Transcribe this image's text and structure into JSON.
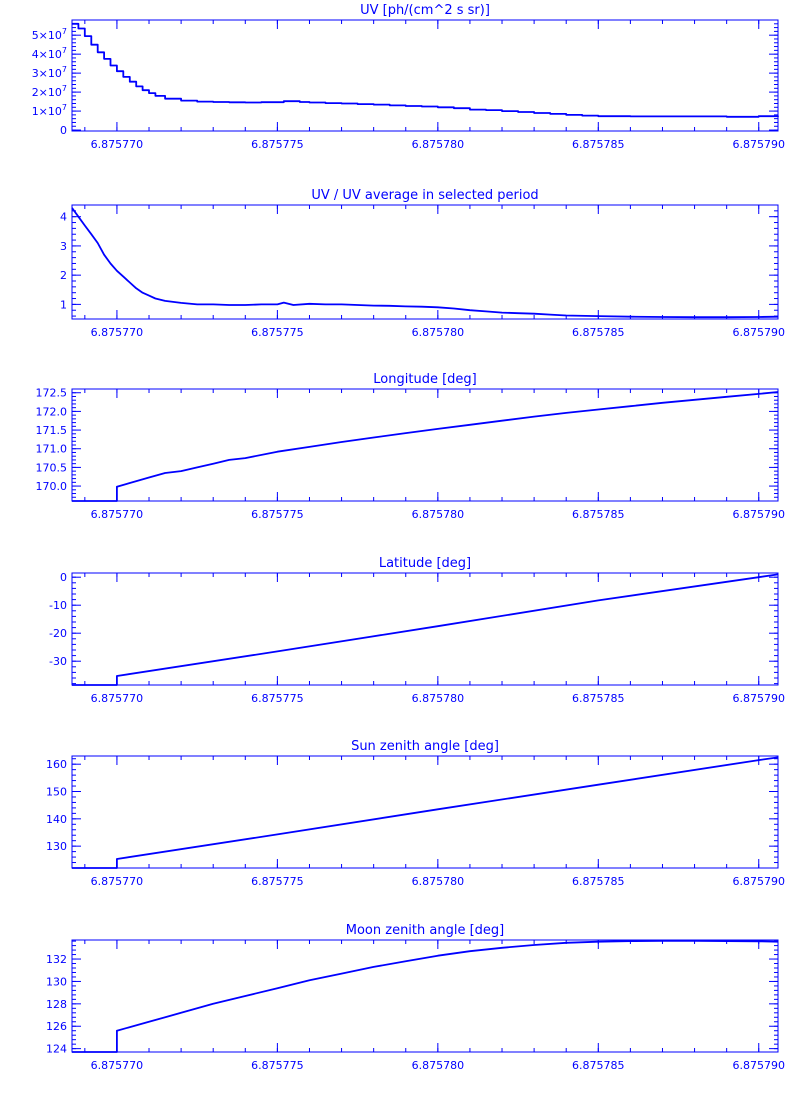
{
  "style": {
    "color": "#0000ff",
    "background": "#ffffff"
  },
  "chart_data": [
    {
      "type": "line",
      "title": "UV [ph/(cm^2 s sr)]",
      "xlabel": "",
      "ylabel": "",
      "xlim": [
        6.8757686,
        6.8757906
      ],
      "ylim": [
        -500000,
        58000000
      ],
      "xticks": [
        6.87577,
        6.875775,
        6.87578,
        6.875785,
        6.87579
      ],
      "xtick_labels": [
        "6.875770",
        "6.875775",
        "6.875780",
        "6.875785",
        "6.875790"
      ],
      "yticks": [
        {
          "value": 0,
          "base": "0",
          "exp": ""
        },
        {
          "value": 10000000,
          "base": "1×10",
          "exp": "7"
        },
        {
          "value": 20000000,
          "base": "2×10",
          "exp": "7"
        },
        {
          "value": 30000000,
          "base": "3×10",
          "exp": "7"
        },
        {
          "value": 40000000,
          "base": "4×10",
          "exp": "7"
        },
        {
          "value": 50000000,
          "base": "5×10",
          "exp": "7"
        }
      ],
      "step": true,
      "series": [
        {
          "x": [
            6.8757686,
            6.8757688,
            6.875769,
            6.8757692,
            6.8757694,
            6.8757696,
            6.8757698,
            6.87577,
            6.8757702,
            6.8757704,
            6.8757706,
            6.8757708,
            6.875771,
            6.8757712,
            6.8757715,
            6.875772,
            6.8757725,
            6.875773,
            6.8757735,
            6.875774,
            6.8757745,
            6.8757752,
            6.8757757,
            6.875776,
            6.8757765,
            6.875777,
            6.8757775,
            6.875778,
            6.8757785,
            6.875779,
            6.8757795,
            6.87578,
            6.8757805,
            6.875781,
            6.8757815,
            6.875782,
            6.8757825,
            6.875783,
            6.8757835,
            6.875784,
            6.8757845,
            6.875785,
            6.875786,
            6.875787,
            6.875788,
            6.875789,
            6.87579,
            6.8757906
          ],
          "y": [
            56000000,
            53500000,
            49500000,
            45000000,
            41000000,
            37500000,
            34000000,
            31000000,
            28000000,
            25500000,
            23000000,
            21000000,
            19500000,
            18000000,
            16500000,
            15500000,
            15000000,
            14800000,
            14600000,
            14500000,
            14700000,
            15200000,
            14800000,
            14500000,
            14200000,
            14000000,
            13700000,
            13400000,
            13000000,
            12700000,
            12400000,
            12000000,
            11500000,
            10800000,
            10500000,
            10000000,
            9500000,
            9000000,
            8500000,
            8000000,
            7600000,
            7300000,
            7200000,
            7200000,
            7200000,
            7000000,
            7300000,
            7500000
          ]
        }
      ]
    },
    {
      "type": "line",
      "title": "UV / UV average in selected period",
      "xlabel": "",
      "ylabel": "",
      "xlim": [
        6.8757686,
        6.8757906
      ],
      "ylim": [
        0.5,
        4.4
      ],
      "xticks": [
        6.87577,
        6.875775,
        6.87578,
        6.875785,
        6.87579
      ],
      "xtick_labels": [
        "6.875770",
        "6.875775",
        "6.875780",
        "6.875785",
        "6.875790"
      ],
      "yticks": [
        {
          "value": 1,
          "base": "1",
          "exp": ""
        },
        {
          "value": 2,
          "base": "2",
          "exp": ""
        },
        {
          "value": 3,
          "base": "3",
          "exp": ""
        },
        {
          "value": 4,
          "base": "4",
          "exp": ""
        }
      ],
      "step": false,
      "series": [
        {
          "x": [
            6.8757686,
            6.8757688,
            6.875769,
            6.8757692,
            6.8757694,
            6.8757696,
            6.8757698,
            6.87577,
            6.8757702,
            6.8757704,
            6.8757706,
            6.8757708,
            6.875771,
            6.8757712,
            6.8757715,
            6.875772,
            6.8757725,
            6.875773,
            6.8757735,
            6.875774,
            6.8757745,
            6.875775,
            6.8757752,
            6.8757755,
            6.875776,
            6.8757765,
            6.875777,
            6.8757775,
            6.875778,
            6.8757785,
            6.875779,
            6.8757795,
            6.87578,
            6.8757805,
            6.875781,
            6.8757815,
            6.875782,
            6.8757825,
            6.875783,
            6.8757835,
            6.875784,
            6.875785,
            6.875786,
            6.875787,
            6.875788,
            6.875789,
            6.87579,
            6.8757906
          ],
          "y": [
            4.3,
            4.0,
            3.7,
            3.4,
            3.1,
            2.7,
            2.4,
            2.15,
            1.95,
            1.75,
            1.55,
            1.4,
            1.3,
            1.2,
            1.12,
            1.05,
            1.0,
            1.0,
            0.98,
            0.98,
            1.0,
            1.0,
            1.06,
            0.98,
            1.02,
            1.0,
            1.0,
            0.98,
            0.96,
            0.95,
            0.93,
            0.92,
            0.9,
            0.86,
            0.8,
            0.76,
            0.72,
            0.7,
            0.68,
            0.65,
            0.62,
            0.6,
            0.58,
            0.57,
            0.56,
            0.56,
            0.57,
            0.58
          ]
        }
      ]
    },
    {
      "type": "line",
      "title": "Longitude [deg]",
      "xlabel": "",
      "ylabel": "",
      "xlim": [
        6.8757686,
        6.8757906
      ],
      "ylim": [
        169.6,
        172.6
      ],
      "xticks": [
        6.87577,
        6.875775,
        6.87578,
        6.875785,
        6.87579
      ],
      "xtick_labels": [
        "6.875770",
        "6.875775",
        "6.875780",
        "6.875785",
        "6.875790"
      ],
      "yticks": [
        {
          "value": 170.0,
          "base": "170.0",
          "exp": ""
        },
        {
          "value": 170.5,
          "base": "170.5",
          "exp": ""
        },
        {
          "value": 171.0,
          "base": "171.0",
          "exp": ""
        },
        {
          "value": 171.5,
          "base": "171.5",
          "exp": ""
        },
        {
          "value": 172.0,
          "base": "172.0",
          "exp": ""
        },
        {
          "value": 172.5,
          "base": "172.5",
          "exp": ""
        }
      ],
      "step": false,
      "series": [
        {
          "x": [
            6.8757686,
            6.87577,
            6.87577,
            6.875771,
            6.8757715,
            6.875772,
            6.8757725,
            6.875773,
            6.8757735,
            6.875774,
            6.875775,
            6.875776,
            6.875777,
            6.875778,
            6.875779,
            6.87578,
            6.875781,
            6.875782,
            6.875783,
            6.875784,
            6.875785,
            6.875786,
            6.875787,
            6.875788,
            6.875789,
            6.87579,
            6.8757906
          ],
          "y": [
            169.6,
            169.6,
            169.98,
            170.23,
            170.35,
            170.4,
            170.5,
            170.6,
            170.7,
            170.75,
            170.92,
            171.05,
            171.18,
            171.3,
            171.42,
            171.53,
            171.64,
            171.75,
            171.86,
            171.96,
            172.05,
            172.14,
            172.23,
            172.31,
            172.39,
            172.47,
            172.52
          ]
        }
      ]
    },
    {
      "type": "line",
      "title": "Latitude [deg]",
      "xlabel": "",
      "ylabel": "",
      "xlim": [
        6.8757686,
        6.8757906
      ],
      "ylim": [
        -38.5,
        1.5
      ],
      "xticks": [
        6.87577,
        6.875775,
        6.87578,
        6.875785,
        6.87579
      ],
      "xtick_labels": [
        "6.875770",
        "6.875775",
        "6.875780",
        "6.875785",
        "6.875790"
      ],
      "yticks": [
        {
          "value": -30,
          "base": "-30",
          "exp": ""
        },
        {
          "value": -20,
          "base": "-20",
          "exp": ""
        },
        {
          "value": -10,
          "base": "-10",
          "exp": ""
        },
        {
          "value": 0,
          "base": "0",
          "exp": ""
        }
      ],
      "step": false,
      "series": [
        {
          "x": [
            6.8757686,
            6.87577,
            6.87577,
            6.875775,
            6.87578,
            6.875785,
            6.87579,
            6.8757906
          ],
          "y": [
            -38.5,
            -38.5,
            -35.3,
            -26.5,
            -17.5,
            -8.3,
            0.0,
            1.0
          ]
        }
      ]
    },
    {
      "type": "line",
      "title": "Sun zenith angle [deg]",
      "xlabel": "",
      "ylabel": "",
      "xlim": [
        6.8757686,
        6.8757906
      ],
      "ylim": [
        122,
        163
      ],
      "xticks": [
        6.87577,
        6.875775,
        6.87578,
        6.875785,
        6.87579
      ],
      "xtick_labels": [
        "6.875770",
        "6.875775",
        "6.875780",
        "6.875785",
        "6.875790"
      ],
      "yticks": [
        {
          "value": 130,
          "base": "130",
          "exp": ""
        },
        {
          "value": 140,
          "base": "140",
          "exp": ""
        },
        {
          "value": 150,
          "base": "150",
          "exp": ""
        },
        {
          "value": 160,
          "base": "160",
          "exp": ""
        }
      ],
      "step": false,
      "series": [
        {
          "x": [
            6.8757686,
            6.87577,
            6.87577,
            6.875775,
            6.87578,
            6.875785,
            6.87579,
            6.8757906
          ],
          "y": [
            122,
            122,
            125.3,
            134.3,
            143.5,
            152.5,
            161.5,
            162.5
          ]
        }
      ]
    },
    {
      "type": "line",
      "title": "Moon zenith angle [deg]",
      "xlabel": "",
      "ylabel": "",
      "xlim": [
        6.8757686,
        6.8757906
      ],
      "ylim": [
        123.7,
        133.7
      ],
      "xticks": [
        6.87577,
        6.875775,
        6.87578,
        6.875785,
        6.87579
      ],
      "xtick_labels": [
        "6.875770",
        "6.875775",
        "6.875780",
        "6.875785",
        "6.875790"
      ],
      "yticks": [
        {
          "value": 124,
          "base": "124",
          "exp": ""
        },
        {
          "value": 126,
          "base": "126",
          "exp": ""
        },
        {
          "value": 128,
          "base": "128",
          "exp": ""
        },
        {
          "value": 130,
          "base": "130",
          "exp": ""
        },
        {
          "value": 132,
          "base": "132",
          "exp": ""
        }
      ],
      "step": false,
      "series": [
        {
          "x": [
            6.8757686,
            6.87577,
            6.87577,
            6.875771,
            6.875772,
            6.875773,
            6.875774,
            6.875775,
            6.875776,
            6.875777,
            6.875778,
            6.875779,
            6.87578,
            6.875781,
            6.875782,
            6.875783,
            6.875784,
            6.875785,
            6.875786,
            6.875787,
            6.875788,
            6.875789,
            6.87579,
            6.8757906
          ],
          "y": [
            123.7,
            123.7,
            125.6,
            126.4,
            127.2,
            128.0,
            128.7,
            129.4,
            130.1,
            130.7,
            131.3,
            131.8,
            132.3,
            132.7,
            133.0,
            133.25,
            133.45,
            133.55,
            133.6,
            133.62,
            133.62,
            133.6,
            133.58,
            133.55
          ]
        }
      ]
    }
  ]
}
